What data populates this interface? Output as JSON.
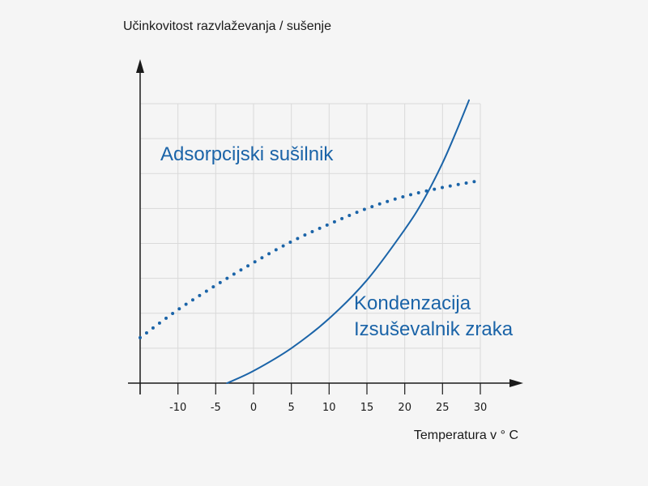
{
  "chart_data": {
    "type": "line",
    "ylabel": "Učinkovitost razvlaževanja / sušenje",
    "xlabel": "Temperatura v ° C",
    "xlim": [
      -15,
      30
    ],
    "ylim": [
      0,
      8
    ],
    "x_ticks": [
      -10,
      -5,
      0,
      5,
      10,
      15,
      20,
      25,
      30
    ],
    "x_tick_labels": [
      "-10",
      "-5",
      "0",
      "5",
      "10",
      "15",
      "20",
      "25",
      "30"
    ],
    "grid": true,
    "series_color": "#1b64a8",
    "series": [
      {
        "label_lines": [
          "Adsorpcijski sušilnik"
        ],
        "style": "dotted",
        "x": [
          -15,
          -10,
          -5,
          0,
          5,
          10,
          15,
          20,
          25,
          30
        ],
        "y": [
          1.3,
          2.1,
          2.8,
          3.45,
          4.05,
          4.55,
          5.0,
          5.35,
          5.6,
          5.8
        ]
      },
      {
        "label_lines": [
          "Kondenzacija",
          "Izsuševalnik zraka"
        ],
        "style": "solid",
        "x": [
          -3.5,
          0,
          5,
          10,
          15,
          20,
          22.5,
          25,
          27,
          28.5
        ],
        "y": [
          0,
          0.35,
          1.0,
          1.85,
          2.95,
          4.4,
          5.25,
          6.3,
          7.3,
          8.1
        ]
      }
    ]
  }
}
